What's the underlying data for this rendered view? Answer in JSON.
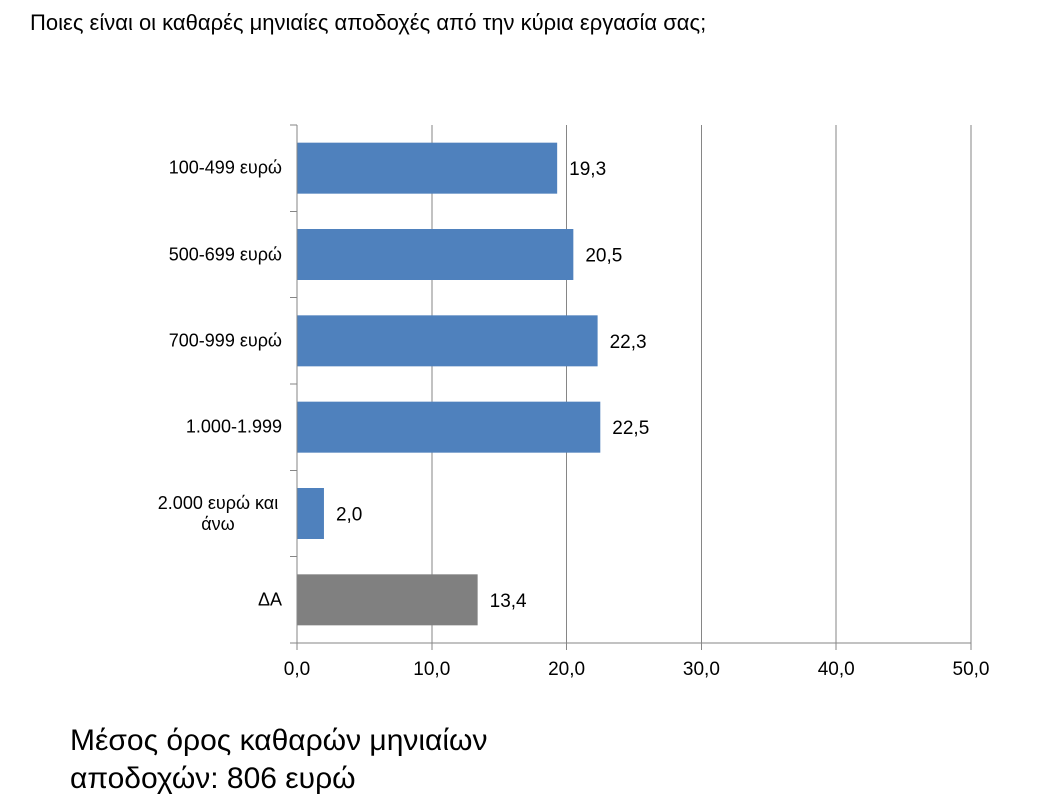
{
  "title": "Ποιες είναι οι καθαρές μηνιαίες αποδοχές από την κύρια εργασία σας;",
  "footnote": {
    "lines": [
      "Μέσος όρος καθαρών μηνιαίων",
      "αποδοχών: 806 ευρώ"
    ]
  },
  "chart_data": {
    "type": "bar",
    "orientation": "horizontal",
    "categories": [
      "100-499 ευρώ",
      "500-699 ευρώ",
      "700-999 ευρώ",
      "1.000-1.999",
      "2.000 ευρώ και άνω",
      "ΔΑ"
    ],
    "values": [
      19.3,
      20.5,
      22.3,
      22.5,
      2.0,
      13.4
    ],
    "data_labels": [
      "19,3",
      "20,5",
      "22,3",
      "22,5",
      "2,0",
      "13,4"
    ],
    "bar_colors": [
      "#4F81BD",
      "#4F81BD",
      "#4F81BD",
      "#4F81BD",
      "#4F81BD",
      "#808080"
    ],
    "xlim": [
      0,
      50
    ],
    "x_ticks": [
      0,
      10,
      20,
      30,
      40,
      50
    ],
    "x_tick_labels": [
      "0,0",
      "10,0",
      "20,0",
      "30,0",
      "40,0",
      "50,0"
    ],
    "grid": true,
    "legend": "none"
  }
}
